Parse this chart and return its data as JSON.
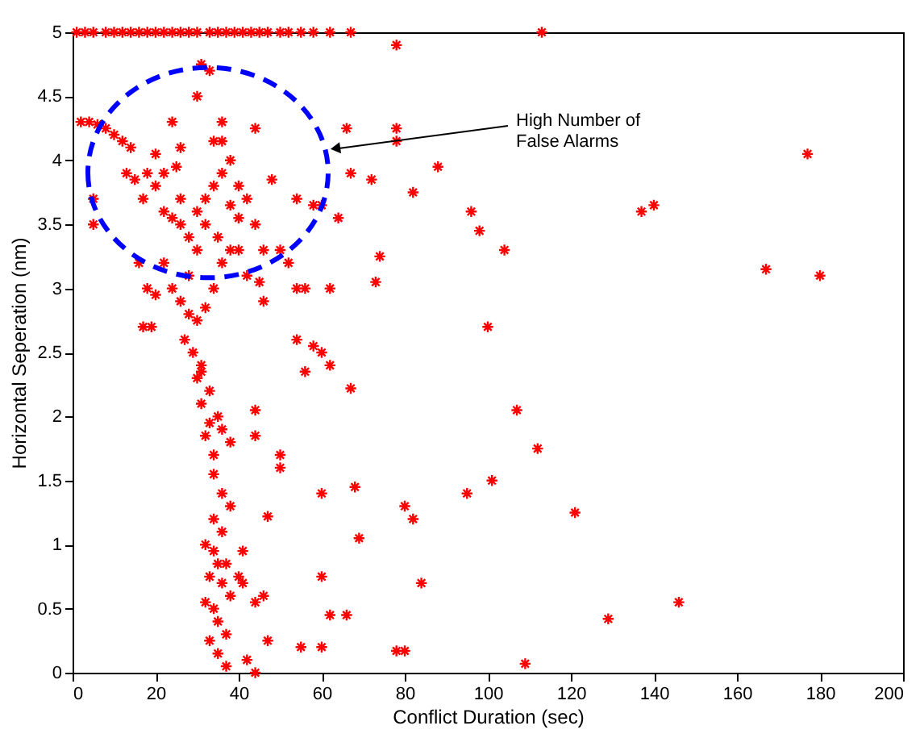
{
  "chart_data": {
    "type": "scatter",
    "xlabel": "Conflict Duration (sec)",
    "ylabel": "Horizontal Seperation (nm)",
    "x": [
      1,
      3,
      5,
      8,
      10,
      12,
      14,
      16,
      18,
      20,
      22,
      24,
      26,
      28,
      30,
      33,
      35,
      37,
      39,
      41,
      43,
      45,
      47,
      50,
      52,
      55,
      58,
      62,
      67,
      113,
      78,
      78,
      78,
      66,
      67,
      72,
      82,
      88,
      96,
      98,
      104,
      100,
      137,
      140,
      167,
      177,
      180,
      107,
      112,
      101,
      95,
      121,
      129,
      146,
      109,
      78,
      80,
      84,
      82,
      80,
      68,
      66,
      60,
      60,
      62,
      60,
      69,
      67,
      60,
      58,
      62,
      56,
      54,
      44,
      44,
      50,
      50,
      36,
      38,
      47,
      58,
      60,
      56,
      46,
      54,
      62,
      73,
      74,
      64,
      2,
      4,
      6,
      8,
      10,
      12,
      14,
      13,
      15,
      18,
      20,
      17,
      22,
      24,
      26,
      28,
      30,
      32,
      34,
      36,
      38,
      40,
      30,
      31,
      33,
      34,
      36,
      26,
      25,
      42,
      44,
      44,
      40,
      42,
      45,
      46,
      50,
      52,
      54,
      48,
      5,
      5,
      16,
      18,
      20,
      22,
      24,
      26,
      28,
      30,
      32,
      34,
      36,
      38,
      40,
      28,
      30,
      32,
      26,
      22,
      20,
      24,
      36,
      38,
      35,
      17,
      19,
      27,
      29,
      31,
      33,
      31,
      35,
      33,
      32,
      34,
      36,
      38,
      34,
      31,
      30,
      32,
      34,
      35,
      33,
      36,
      38,
      32,
      34,
      35,
      37,
      33,
      35,
      37,
      42,
      44,
      41,
      44,
      46,
      41,
      47,
      55,
      37,
      40,
      36,
      34
    ],
    "values": [
      5,
      5,
      5,
      5,
      5,
      5,
      5,
      5,
      5,
      5,
      5,
      5,
      5,
      5,
      5,
      5,
      5,
      5,
      5,
      5,
      5,
      5,
      5,
      5,
      5,
      5,
      5,
      5,
      5,
      5,
      4.9,
      4.25,
      4.15,
      4.25,
      3.9,
      3.85,
      3.75,
      3.95,
      3.6,
      3.45,
      3.3,
      2.7,
      3.6,
      3.65,
      3.15,
      4.05,
      3.1,
      2.05,
      1.75,
      1.5,
      1.4,
      1.25,
      0.42,
      0.55,
      0.07,
      0.17,
      0.17,
      0.7,
      1.2,
      1.3,
      1.45,
      0.45,
      0.2,
      0.75,
      0.45,
      1.4,
      1.05,
      2.22,
      2.5,
      2.55,
      2.4,
      2.35,
      2.6,
      2.05,
      1.85,
      1.7,
      1.6,
      1.4,
      1.3,
      1.22,
      3.65,
      3.65,
      3,
      3.3,
      3,
      3,
      3.05,
      3.25,
      3.55,
      4.3,
      4.3,
      4.28,
      4.25,
      4.2,
      4.15,
      4.1,
      3.9,
      3.85,
      3.9,
      3.8,
      3.7,
      3.6,
      3.55,
      3.5,
      3.4,
      3.6,
      3.7,
      3.8,
      3.9,
      4,
      3.8,
      4.5,
      4.75,
      4.7,
      4.15,
      4.15,
      4.1,
      3.95,
      3.7,
      4.25,
      3.5,
      3.3,
      3.1,
      3.05,
      2.9,
      3.3,
      3.2,
      3.7,
      3.85,
      3.5,
      3.7,
      3.2,
      3,
      2.95,
      3.2,
      3,
      2.9,
      2.8,
      2.75,
      2.85,
      3,
      3.2,
      3.3,
      3.55,
      3.1,
      3.3,
      3.5,
      3.7,
      3.9,
      4.05,
      4.3,
      4.3,
      3.65,
      3.4,
      2.7,
      2.7,
      2.6,
      2.5,
      2.4,
      2.2,
      2.1,
      2,
      1.95,
      1.85,
      1.7,
      1.9,
      1.8,
      1.55,
      2.35,
      2.3,
      1,
      0.95,
      0.85,
      0.75,
      0.7,
      0.6,
      0.55,
      0.5,
      0.4,
      0.3,
      0.25,
      0.15,
      0.05,
      0.1,
      0,
      0.7,
      0.55,
      0.6,
      0.95,
      0.25,
      0.2,
      0.85,
      0.75,
      1.1,
      1.2
    ],
    "color": "#ff0000",
    "marker": "cross",
    "xlim": [
      0,
      200
    ],
    "ylim": [
      0,
      5
    ],
    "xticks": [
      0,
      20,
      40,
      60,
      80,
      100,
      120,
      140,
      160,
      180,
      200
    ],
    "yticks": [
      0,
      0.5,
      1,
      1.5,
      2,
      2.5,
      3,
      3.5,
      4,
      4.5,
      5
    ],
    "grid": false,
    "annotations": [
      "High Number of\nFalse Alarms"
    ]
  }
}
